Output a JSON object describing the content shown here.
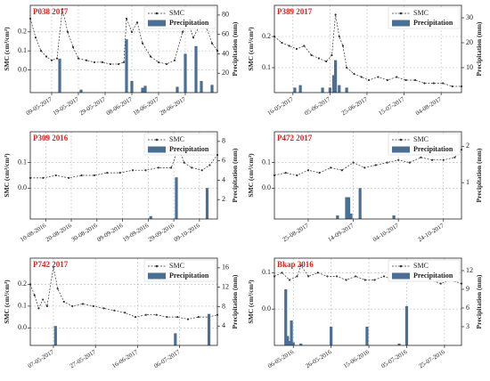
{
  "chart_data": [
    {
      "type": "combo",
      "title": "P038 2017",
      "ylabel": "SMC (cm³/cm³)",
      "y2label": "Precipitation (mm)",
      "xlim": [
        "01-05-2017",
        "10-07-2017"
      ],
      "xticks": [
        "09-05-2017",
        "19-05-2017",
        "29-05-2017",
        "08-06-2017",
        "18-06-2017",
        "28-06-2017"
      ],
      "ylim": [
        -0.12,
        0.34
      ],
      "yticks": [
        {
          "value": 0,
          "label": "0.0"
        },
        0.1,
        0.2
      ],
      "y2lim": [
        0,
        90
      ],
      "y2ticks": [
        20,
        40,
        60,
        80
      ],
      "grid": true,
      "series": [
        {
          "name": "SMC",
          "kind": "line",
          "color": "#333333",
          "x": [
            "01-05-2017",
            "03-05-2017",
            "05-05-2017",
            "07-05-2017",
            "09-05-2017",
            "11-05-2017",
            "13-05-2017",
            "15-05-2017",
            "17-05-2017",
            "19-05-2017",
            "22-05-2017",
            "25-05-2017",
            "28-05-2017",
            "31-05-2017",
            "03-06-2017",
            "05-06-2017",
            "06-06-2017",
            "08-06-2017",
            "10-06-2017",
            "12-06-2017",
            "15-06-2017",
            "18-06-2017",
            "21-06-2017",
            "24-06-2017",
            "27-06-2017",
            "29-06-2017",
            "01-07-2017",
            "04-07-2017",
            "06-07-2017",
            "08-07-2017",
            "10-07-2017"
          ],
          "values": [
            0.27,
            0.17,
            0.1,
            0.07,
            0.05,
            0.06,
            0.32,
            0.2,
            0.12,
            0.06,
            0.05,
            0.04,
            0.04,
            0.03,
            0.03,
            0.04,
            0.27,
            0.2,
            0.25,
            0.14,
            0.07,
            0.04,
            0.03,
            0.05,
            0.2,
            0.25,
            0.17,
            0.25,
            0.22,
            0.14,
            0.1
          ]
        },
        {
          "name": "Precipitation",
          "kind": "bar",
          "axis": "y2",
          "color": "#4a6f96",
          "x": [
            "12-05-2017",
            "20-05-2017",
            "06-06-2017",
            "08-06-2017",
            "12-06-2017",
            "13-06-2017",
            "25-06-2017",
            "28-06-2017",
            "02-07-2017",
            "04-07-2017",
            "08-07-2017"
          ],
          "values": [
            35,
            3,
            55,
            12,
            5,
            7,
            6,
            40,
            48,
            12,
            8
          ]
        }
      ]
    },
    {
      "type": "combo",
      "title": "P389 2017",
      "ylabel": "SMC (cm³/cm³)",
      "y2label": "Precipitation (mm)",
      "xlim": [
        "06-05-2017",
        "15-08-2017"
      ],
      "xticks": [
        "16-05-2017",
        "05-06-2017",
        "25-06-2017",
        "15-07-2017",
        "04-08-2017"
      ],
      "ylim": [
        0.02,
        0.3
      ],
      "yticks": [
        0.1,
        0.2
      ],
      "y2lim": [
        0,
        35
      ],
      "y2ticks": [
        10,
        20,
        30
      ],
      "grid": true,
      "series": [
        {
          "name": "SMC",
          "kind": "line",
          "color": "#333333",
          "x": [
            "06-05-2017",
            "10-05-2017",
            "14-05-2017",
            "18-05-2017",
            "22-05-2017",
            "26-05-2017",
            "30-05-2017",
            "03-06-2017",
            "06-06-2017",
            "08-06-2017",
            "10-06-2017",
            "12-06-2017",
            "14-06-2017",
            "18-06-2017",
            "22-06-2017",
            "26-06-2017",
            "01-07-2017",
            "06-07-2017",
            "11-07-2017",
            "16-07-2017",
            "21-07-2017",
            "26-07-2017",
            "31-07-2017",
            "05-08-2017",
            "10-08-2017",
            "15-08-2017"
          ],
          "values": [
            0.2,
            0.18,
            0.17,
            0.16,
            0.17,
            0.14,
            0.13,
            0.12,
            0.14,
            0.27,
            0.2,
            0.17,
            0.1,
            0.08,
            0.07,
            0.06,
            0.07,
            0.06,
            0.07,
            0.06,
            0.06,
            0.05,
            0.05,
            0.05,
            0.04,
            0.04
          ]
        },
        {
          "name": "Precipitation",
          "kind": "bar",
          "axis": "y2",
          "color": "#4a6f96",
          "x": [
            "17-05-2017",
            "20-05-2017",
            "01-06-2017",
            "05-06-2017",
            "07-06-2017",
            "08-06-2017",
            "10-06-2017",
            "14-06-2017"
          ],
          "values": [
            2,
            3,
            2,
            2,
            7,
            13,
            3,
            2
          ]
        }
      ]
    },
    {
      "type": "combo",
      "title": "P309 2016",
      "ylabel": "SMC (cm³/cm³)",
      "y2label": "Precipitation (mm)",
      "xlim": [
        "04-08-2016",
        "16-10-2016"
      ],
      "xticks": [
        "10-08-2016",
        "20-08-2016",
        "30-08-2016",
        "09-09-2016",
        "19-09-2016",
        "29-09-2016",
        "09-10-2016"
      ],
      "ylim": [
        -0.12,
        0.22
      ],
      "yticks": [
        {
          "value": 0,
          "label": "0.0"
        },
        0.1
      ],
      "y2lim": [
        0,
        9
      ],
      "y2ticks": [
        2,
        4,
        6,
        8
      ],
      "grid": true,
      "series": [
        {
          "name": "SMC",
          "kind": "line",
          "color": "#333333",
          "x": [
            "04-08-2016",
            "09-08-2016",
            "14-08-2016",
            "19-08-2016",
            "24-08-2016",
            "29-08-2016",
            "03-09-2016",
            "08-09-2016",
            "13-09-2016",
            "18-09-2016",
            "23-09-2016",
            "28-09-2016",
            "01-10-2016",
            "03-10-2016",
            "06-10-2016",
            "10-10-2016",
            "13-10-2016",
            "16-10-2016"
          ],
          "values": [
            0.04,
            0.04,
            0.05,
            0.04,
            0.05,
            0.05,
            0.06,
            0.06,
            0.07,
            0.07,
            0.08,
            0.08,
            0.16,
            0.1,
            0.08,
            0.07,
            0.09,
            0.13
          ]
        },
        {
          "name": "Precipitation",
          "kind": "bar",
          "axis": "y2",
          "color": "#4a6f96",
          "x": [
            "20-09-2016",
            "30-09-2016",
            "12-10-2016"
          ],
          "values": [
            0.3,
            4.3,
            3.2
          ]
        }
      ]
    },
    {
      "type": "combo",
      "title": "P472 2017",
      "ylabel": "SMC (cm³/cm³)",
      "y2label": "Precipitation (mm)",
      "xlim": [
        "10-08-2017",
        "01-11-2017"
      ],
      "xticks": [
        "25-08-2017",
        "14-09-2017",
        "04-10-2017",
        "24-10-2017"
      ],
      "ylim": [
        -0.12,
        0.22
      ],
      "yticks": [
        {
          "value": 0,
          "label": "0.0"
        },
        0.1
      ],
      "y2lim": [
        0,
        2.4
      ],
      "y2ticks": [
        1,
        2
      ],
      "grid": true,
      "series": [
        {
          "name": "SMC",
          "kind": "line",
          "color": "#333333",
          "x": [
            "10-08-2017",
            "15-08-2017",
            "20-08-2017",
            "25-08-2017",
            "30-08-2017",
            "04-09-2017",
            "09-09-2017",
            "14-09-2017",
            "19-09-2017",
            "24-09-2017",
            "29-09-2017",
            "04-10-2017",
            "09-10-2017",
            "14-10-2017",
            "19-10-2017",
            "24-10-2017",
            "29-10-2017",
            "01-11-2017"
          ],
          "values": [
            0.05,
            0.06,
            0.05,
            0.07,
            0.06,
            0.08,
            0.07,
            0.1,
            0.08,
            0.09,
            0.1,
            0.11,
            0.1,
            0.12,
            0.11,
            0.11,
            0.12,
            0.15
          ]
        },
        {
          "name": "Precipitation",
          "kind": "bar",
          "axis": "y2",
          "color": "#4a6f96",
          "x": [
            "07-09-2017",
            "11-09-2017",
            "12-09-2017",
            "13-09-2017",
            "17-09-2017",
            "02-10-2017"
          ],
          "values": [
            0.1,
            0.6,
            0.6,
            0.15,
            0.85,
            0.1
          ]
        }
      ]
    },
    {
      "type": "combo",
      "title": "P742 2017",
      "ylabel": "SMC (cm³/cm³)",
      "y2label": "Precipitation (mm)",
      "xlim": [
        "26-04-2017",
        "24-07-2017"
      ],
      "xticks": [
        "07-05-2017",
        "27-05-2017",
        "16-06-2017",
        "06-07-2017"
      ],
      "ylim": [
        -0.08,
        0.32
      ],
      "yticks": [
        {
          "value": 0,
          "label": "0.0"
        },
        0.1,
        0.2
      ],
      "y2lim": [
        0,
        18
      ],
      "y2ticks": [
        4,
        8,
        12,
        16
      ],
      "grid": true,
      "series": [
        {
          "name": "SMC",
          "kind": "line",
          "color": "#333333",
          "x": [
            "26-04-2017",
            "28-04-2017",
            "30-04-2017",
            "02-05-2017",
            "04-05-2017",
            "07-05-2017",
            "09-05-2017",
            "12-05-2017",
            "16-05-2017",
            "21-05-2017",
            "26-05-2017",
            "31-05-2017",
            "05-06-2017",
            "10-06-2017",
            "15-06-2017",
            "20-06-2017",
            "25-06-2017",
            "30-06-2017",
            "05-07-2017",
            "10-07-2017",
            "15-07-2017",
            "20-07-2017",
            "24-07-2017"
          ],
          "values": [
            0.2,
            0.15,
            0.09,
            0.13,
            0.1,
            0.28,
            0.18,
            0.12,
            0.1,
            0.11,
            0.1,
            0.09,
            0.08,
            0.07,
            0.05,
            0.06,
            0.06,
            0.05,
            0.05,
            0.04,
            0.05,
            0.05,
            0.06
          ]
        },
        {
          "name": "Precipitation",
          "kind": "bar",
          "axis": "y2",
          "color": "#4a6f96",
          "x": [
            "08-05-2017",
            "04-07-2017",
            "20-07-2017"
          ],
          "values": [
            4,
            2.5,
            6.5
          ]
        }
      ]
    },
    {
      "type": "combo",
      "title": "Bkap 2016",
      "ylabel": "SMC (cm³/cm³)",
      "y2label": "Precipitation (mm)",
      "xlim": [
        "26-04-2016",
        "03-08-2016"
      ],
      "xticks": [
        "06-05-2016",
        "26-05-2016",
        "15-06-2016",
        "05-07-2016",
        "25-07-2016"
      ],
      "ylim": [
        -0.1,
        0.14
      ],
      "yticks": [
        {
          "value": 0,
          "label": "0.0"
        },
        0.1
      ],
      "y2lim": [
        0,
        14
      ],
      "y2ticks": [
        3,
        6,
        9,
        12
      ],
      "grid": true,
      "series": [
        {
          "name": "SMC",
          "kind": "line",
          "color": "#333333",
          "x": [
            "26-04-2016",
            "30-04-2016",
            "04-05-2016",
            "08-05-2016",
            "10-05-2016",
            "14-05-2016",
            "19-05-2016",
            "24-05-2016",
            "29-05-2016",
            "03-06-2016",
            "08-06-2016",
            "13-06-2016",
            "18-06-2016",
            "23-06-2016",
            "28-06-2016",
            "03-07-2016",
            "08-07-2016",
            "13-07-2016",
            "18-07-2016",
            "23-07-2016",
            "28-07-2016",
            "03-08-2016"
          ],
          "values": [
            0.09,
            0.1,
            0.08,
            0.09,
            0.12,
            0.09,
            0.1,
            0.09,
            0.09,
            0.08,
            0.09,
            0.08,
            0.08,
            0.09,
            0.08,
            0.08,
            0.1,
            0.08,
            0.08,
            0.07,
            0.08,
            0.07
          ]
        },
        {
          "name": "Precipitation",
          "kind": "bar",
          "axis": "y2",
          "color": "#4a6f96",
          "x": [
            "02-05-2016",
            "03-05-2016",
            "04-05-2016",
            "05-05-2016",
            "06-05-2016",
            "10-05-2016",
            "26-05-2016",
            "14-06-2016",
            "01-07-2016",
            "05-07-2016"
          ],
          "values": [
            9,
            1.5,
            0.7,
            4,
            0.5,
            0.3,
            3,
            3,
            0.3,
            6.3
          ]
        }
      ]
    }
  ]
}
